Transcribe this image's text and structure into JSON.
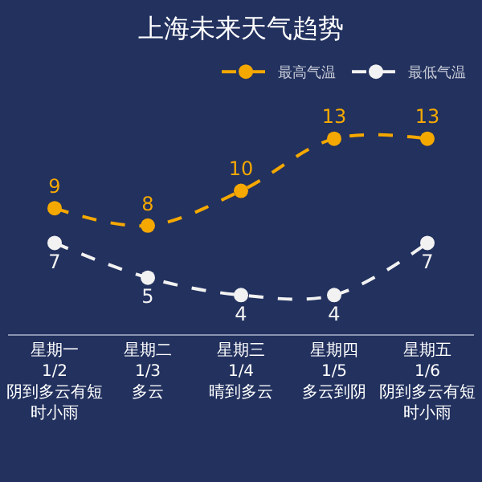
{
  "chart_data": {
    "type": "line",
    "title": "上海未来天气趋势",
    "categories": [
      "星期一\n1/2\n阴到多云有短时小雨",
      "星期二\n1/3\n多云",
      "星期三\n1/4\n晴到多云",
      "星期四\n1/5\n多云到阴",
      "星期五\n1/6\n阴到多云有短时小雨"
    ],
    "series": [
      {
        "name": "最高气温",
        "color": "#f5a800",
        "values": [
          9,
          8,
          10,
          13,
          13
        ]
      },
      {
        "name": "最低气温",
        "color": "#f2f2f2",
        "values": [
          7,
          5,
          4,
          4,
          7
        ]
      }
    ],
    "data_labels": true,
    "legend": "top right",
    "marker": "circle",
    "line_style": "dashed",
    "grid": false
  }
}
